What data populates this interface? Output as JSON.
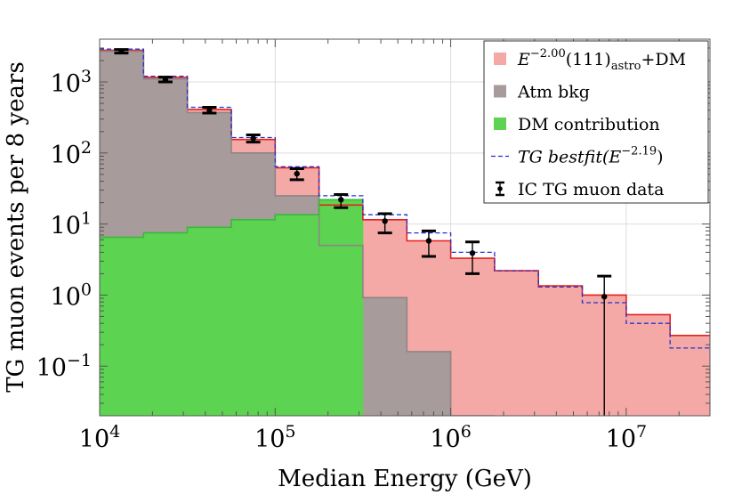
{
  "chart_data": {
    "type": "step-histogram",
    "xscale": "log",
    "yscale": "log",
    "xlim": [
      10000,
      30000000
    ],
    "ylim": [
      0.02,
      4000
    ],
    "xlabel": "Median Energy (GeV)",
    "ylabel": "TG muon events per 8 years",
    "x_ticks": [
      {
        "value": 10000,
        "base": "10",
        "exp": "4"
      },
      {
        "value": 100000,
        "base": "10",
        "exp": "5"
      },
      {
        "value": 1000000,
        "base": "10",
        "exp": "6"
      },
      {
        "value": 10000000,
        "base": "10",
        "exp": "7"
      }
    ],
    "y_ticks": [
      {
        "value": 1000,
        "base": "10",
        "exp": "3"
      },
      {
        "value": 100,
        "base": "10",
        "exp": "2"
      },
      {
        "value": 10,
        "base": "10",
        "exp": "1"
      },
      {
        "value": 1,
        "base": "10",
        "exp": "0"
      },
      {
        "value": 0.1,
        "base": "10",
        "exp": "−1"
      }
    ],
    "bin_edges": [
      10000,
      17783,
      31623,
      56234,
      100000,
      177828,
      316228,
      562341,
      1000000,
      1778279,
      3162278,
      5623413,
      10000000,
      17782794,
      30000000
    ],
    "series": [
      {
        "name": "astro_dm",
        "label": "E^{-2.00}(111)_astro+DM",
        "style": "filled-step",
        "color": "#f4a9a6",
        "edge_color": "#e8201c",
        "values": [
          2800,
          1160,
          410,
          155,
          62,
          18.5,
          11.5,
          5.8,
          3.3,
          2.2,
          1.35,
          1.0,
          0.53,
          0.27
        ]
      },
      {
        "name": "atm_bkg",
        "label": "Atm bkg",
        "style": "filled-step",
        "color": "#a79b9b",
        "edge_color": "#8f8585",
        "values": [
          2700,
          1100,
          370,
          100,
          25,
          5.0,
          0.92,
          0.16,
          0.02,
          null,
          null,
          null,
          null,
          null
        ]
      },
      {
        "name": "dm",
        "label": "DM contribution",
        "style": "filled-step",
        "color": "#5dd451",
        "edge_color": "#3bb83a",
        "values": [
          6.5,
          7.5,
          9.0,
          11.5,
          13.5,
          22.0,
          null,
          null,
          null,
          null,
          null,
          null,
          null,
          null
        ]
      },
      {
        "name": "tg_bestfit",
        "label": "TG bestfit(E^{-2.19})",
        "style": "dashed-step",
        "color": "#2233cc",
        "values": [
          2900,
          1200,
          440,
          165,
          64,
          25,
          13.5,
          7.5,
          4.0,
          2.2,
          1.3,
          0.78,
          0.4,
          0.18
        ]
      },
      {
        "name": "ic_data",
        "label": "IC TG muon data",
        "style": "errorbar",
        "color": "#000000",
        "points": [
          {
            "x": 13300,
            "y": 2700,
            "lo": 2550,
            "hi": 2860
          },
          {
            "x": 23700,
            "y": 1080,
            "lo": 1000,
            "hi": 1170
          },
          {
            "x": 42200,
            "y": 400,
            "lo": 365,
            "hi": 440
          },
          {
            "x": 75000,
            "y": 160,
            "lo": 142,
            "hi": 180
          },
          {
            "x": 133000,
            "y": 51,
            "lo": 42,
            "hi": 60
          },
          {
            "x": 237000,
            "y": 22,
            "lo": 17,
            "hi": 26
          },
          {
            "x": 422000,
            "y": 11,
            "lo": 7.5,
            "hi": 14
          },
          {
            "x": 750000,
            "y": 5.8,
            "lo": 3.5,
            "hi": 8
          },
          {
            "x": 1330000,
            "y": 3.9,
            "lo": 2.0,
            "hi": 5.6
          },
          {
            "x": 7500000,
            "y": 0.95,
            "lo": 0.02,
            "hi": 1.85
          }
        ]
      }
    ],
    "legend": {
      "position": "top-right",
      "entries": [
        {
          "series": "astro_dm",
          "marker": "swatch",
          "color": "#f4a9a6",
          "text_pre": "E",
          "sup1": "−2.00",
          "text_mid": "(111)",
          "sub1": "astro",
          "text_post": "+DM"
        },
        {
          "series": "atm_bkg",
          "marker": "swatch",
          "color": "#a79b9b",
          "text": "Atm bkg"
        },
        {
          "series": "dm",
          "marker": "swatch",
          "color": "#5dd451",
          "text": "DM contribution"
        },
        {
          "series": "tg_bestfit",
          "marker": "dash",
          "color": "#2233cc",
          "text_pre": "TG bestfit(E",
          "sup1": "−2.19",
          "text_post": ")"
        },
        {
          "series": "ic_data",
          "marker": "errorbar",
          "color": "#000000",
          "text": "IC TG muon data"
        }
      ]
    }
  }
}
